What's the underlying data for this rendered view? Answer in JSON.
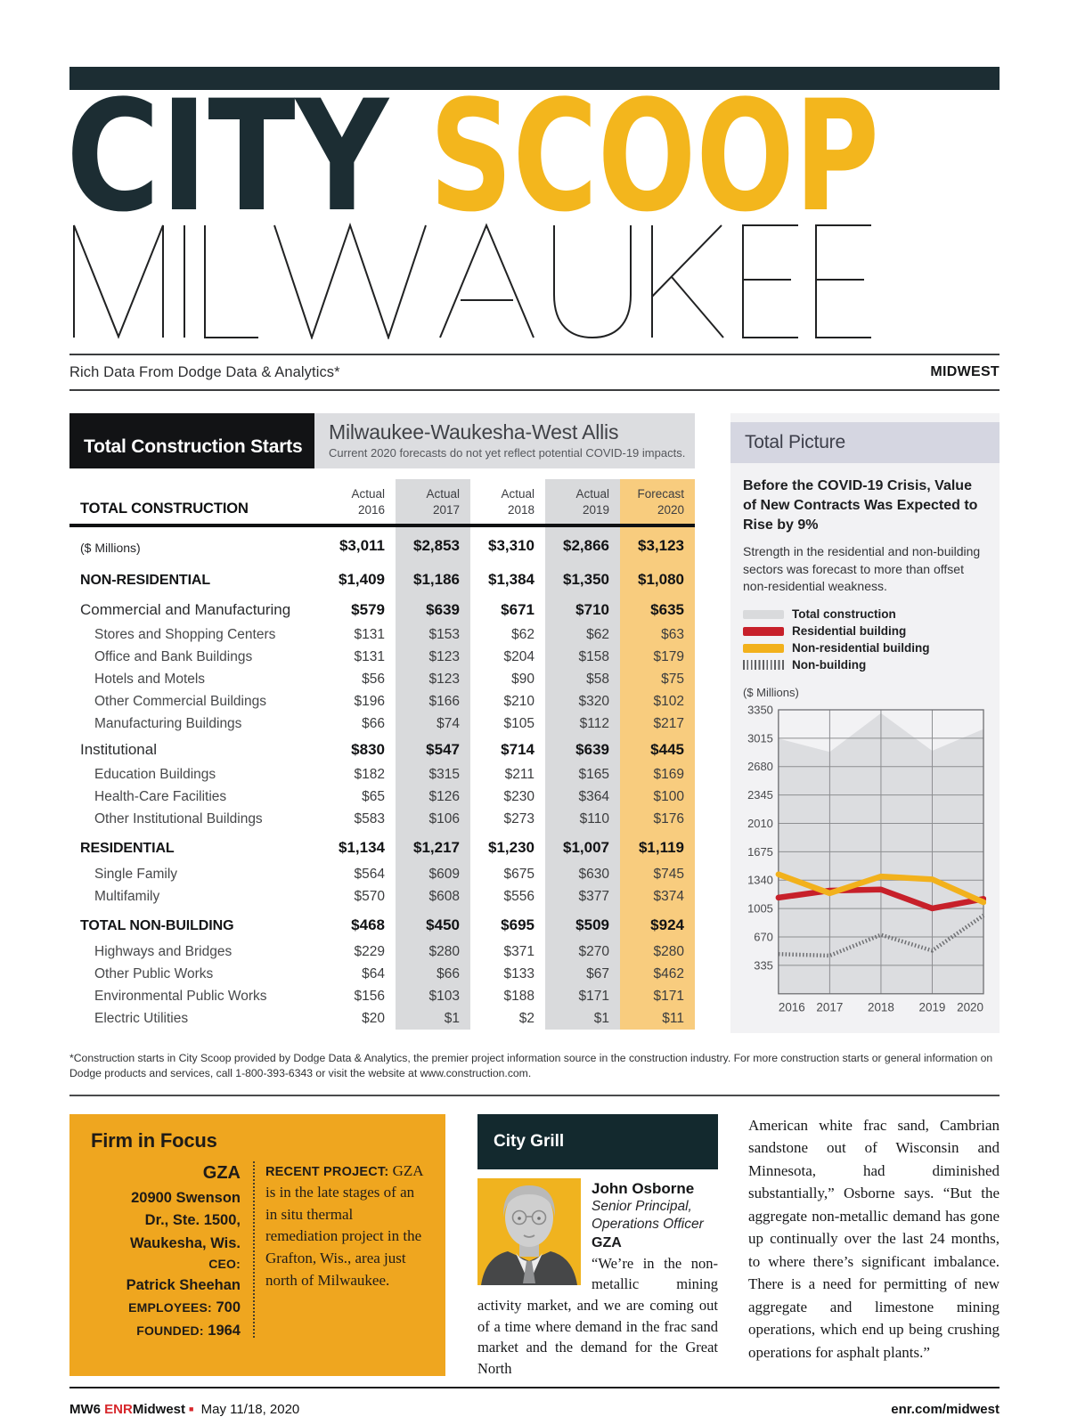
{
  "page": {
    "tagline": "Rich Data From Dodge Data & Analytics*",
    "region": "MIDWEST"
  },
  "masthead": {
    "title_1": "CITY",
    "title_2": "SCOOP",
    "city": "MILWAUKEE"
  },
  "brand_colors": {
    "dark": "#1c2d33",
    "gold": "#f3b61d",
    "red": "#c7202a"
  },
  "construction_table": {
    "box_title": "Total Construction Starts",
    "market_title": "Milwaukee-Waukesha-West Allis",
    "market_note": "Current 2020 forecasts do not yet reflect potential COVID-19 impacts.",
    "group_label": "TOTAL CONSTRUCTION",
    "columns": [
      {
        "kind": "Actual",
        "year": "2016"
      },
      {
        "kind": "Actual",
        "year": "2017"
      },
      {
        "kind": "Actual",
        "year": "2018"
      },
      {
        "kind": "Actual",
        "year": "2019"
      },
      {
        "kind": "Forecast",
        "year": "2020"
      }
    ],
    "rows": [
      {
        "label": "($ Millions)",
        "values": [
          "$3,011",
          "$2,853",
          "$3,310",
          "$2,866",
          "$3,123"
        ]
      },
      {
        "label": "NON-RESIDENTIAL",
        "values": [
          "$1,409",
          "$1,186",
          "$1,384",
          "$1,350",
          "$1,080"
        ]
      },
      {
        "label": "Commercial and Manufacturing",
        "values": [
          "$579",
          "$639",
          "$671",
          "$710",
          "$635"
        ]
      },
      {
        "label": "Stores and Shopping Centers",
        "values": [
          "$131",
          "$153",
          "$62",
          "$62",
          "$63"
        ]
      },
      {
        "label": "Office and Bank Buildings",
        "values": [
          "$131",
          "$123",
          "$204",
          "$158",
          "$179"
        ]
      },
      {
        "label": "Hotels and Motels",
        "values": [
          "$56",
          "$123",
          "$90",
          "$58",
          "$75"
        ]
      },
      {
        "label": "Other Commercial Buildings",
        "values": [
          "$196",
          "$166",
          "$210",
          "$320",
          "$102"
        ]
      },
      {
        "label": "Manufacturing Buildings",
        "values": [
          "$66",
          "$74",
          "$105",
          "$112",
          "$217"
        ]
      },
      {
        "label": "Institutional",
        "values": [
          "$830",
          "$547",
          "$714",
          "$639",
          "$445"
        ]
      },
      {
        "label": "Education Buildings",
        "values": [
          "$182",
          "$315",
          "$211",
          "$165",
          "$169"
        ]
      },
      {
        "label": "Health-Care Facilities",
        "values": [
          "$65",
          "$126",
          "$230",
          "$364",
          "$100"
        ]
      },
      {
        "label": "Other Institutional Buildings",
        "values": [
          "$583",
          "$106",
          "$273",
          "$110",
          "$176"
        ]
      },
      {
        "label": "RESIDENTIAL",
        "values": [
          "$1,134",
          "$1,217",
          "$1,230",
          "$1,007",
          "$1,119"
        ]
      },
      {
        "label": "Single Family",
        "values": [
          "$564",
          "$609",
          "$675",
          "$630",
          "$745"
        ]
      },
      {
        "label": "Multifamily",
        "values": [
          "$570",
          "$608",
          "$556",
          "$377",
          "$374"
        ]
      },
      {
        "label": "TOTAL NON-BUILDING",
        "values": [
          "$468",
          "$450",
          "$695",
          "$509",
          "$924"
        ]
      },
      {
        "label": "Highways and Bridges",
        "values": [
          "$229",
          "$280",
          "$371",
          "$270",
          "$280"
        ]
      },
      {
        "label": "Other Public Works",
        "values": [
          "$64",
          "$66",
          "$133",
          "$67",
          "$462"
        ]
      },
      {
        "label": "Environmental Public Works",
        "values": [
          "$156",
          "$103",
          "$188",
          "$171",
          "$171"
        ]
      },
      {
        "label": "Electric Utilities",
        "values": [
          "$20",
          "$1",
          "$2",
          "$1",
          "$11"
        ]
      }
    ]
  },
  "sidebar": {
    "title": "Total Picture",
    "headline": "Before the COVID-19 Crisis, Value of New Contracts Was Expected to Rise by 9%",
    "body": "Strength in the residential and non-building sectors was forecast to more than offset non-residential weakness.",
    "chart_units": "($ Millions)"
  },
  "chart_data": {
    "type": "line",
    "x": [
      "2016",
      "2017",
      "2018",
      "2019",
      "2020"
    ],
    "ylabel": "($ Millions)",
    "ylim": [
      0,
      3350
    ],
    "yticks": [
      335,
      670,
      1005,
      1340,
      1675,
      2010,
      2345,
      2680,
      3015,
      3350
    ],
    "grid": true,
    "legend_position": "above",
    "series": [
      {
        "name": "Total construction",
        "type": "area",
        "color": "#dcdde0",
        "values": [
          3011,
          2853,
          3310,
          2866,
          3123
        ]
      },
      {
        "name": "Residential building",
        "type": "line",
        "color": "#c7202a",
        "values": [
          1134,
          1217,
          1230,
          1007,
          1119
        ]
      },
      {
        "name": "Non-residential building",
        "type": "line",
        "color": "#f2b11c",
        "values": [
          1409,
          1186,
          1384,
          1350,
          1080
        ]
      },
      {
        "name": "Non-building",
        "type": "line",
        "style": "hatched",
        "color": "#6e6f72",
        "values": [
          468,
          450,
          695,
          509,
          924
        ]
      }
    ]
  },
  "footnote": "*Construction starts in City Scoop provided by Dodge Data & Analytics, the premier project information source in the construction industry. For more construction starts or general information on Dodge products and services, call 1-800-393-6343 or visit the website at www.construction.com.",
  "firm_in_focus": {
    "title": "Firm in Focus",
    "name": "GZA",
    "address": [
      "20900 Swenson",
      "Dr., Ste. 1500,",
      "Waukesha, Wis."
    ],
    "ceo_label": "CEO:",
    "ceo": "Patrick Sheehan",
    "employees_label": "EMPLOYEES:",
    "employees": "700",
    "founded_label": "FOUNDED:",
    "founded": "1964",
    "project_label": "RECENT PROJECT:",
    "project": " GZA is in the late stages of an in situ thermal remediation project in the Grafton, Wis., area just north of Milwaukee."
  },
  "city_grill": {
    "title": "City Grill",
    "person": "John Osborne",
    "role_line1": "Senior Principal,",
    "role_line2": "Operations Officer",
    "company": "GZA",
    "quote": "“We’re in the non-metallic mining activity market, and we are coming out of a time where demand in the frac sand market and the demand for the Great North"
  },
  "article": {
    "continuation": "American white frac sand, Cambrian sandstone out of Wisconsin and Minnesota, had diminished substantially,” Osborne says. “But the aggregate non-metallic demand has gone up continually over the last 24 months, to where there’s significant imbalance. There is a need for permitting of new aggregate and limestone mining operations, which end up being crushing operations for asphalt plants.”"
  },
  "footer": {
    "page_code": "MW6",
    "brand": "ENR",
    "brand_suffix": "Midwest",
    "bullet": "■",
    "date": "May 11/18, 2020",
    "url": "enr.com/midwest"
  }
}
